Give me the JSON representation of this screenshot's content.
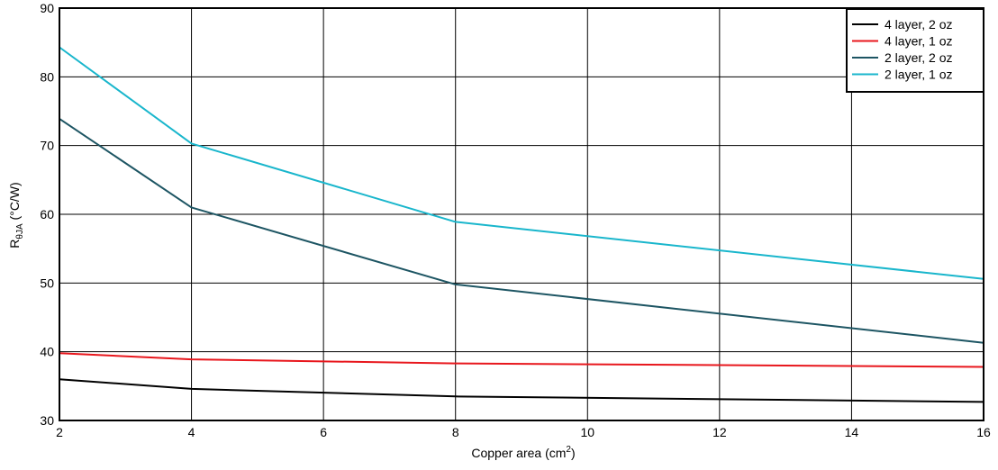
{
  "chart_data": {
    "type": "line",
    "title": "",
    "xlabel": "Copper area (cm",
    "xlabel_sup": "2",
    "xlabel_close": ")",
    "ylabel_main": "R",
    "ylabel_sub": "θJA",
    "ylabel_unit": " (°C/W)",
    "xlim": [
      2,
      16
    ],
    "ylim": [
      30,
      90
    ],
    "xticks": [
      2,
      4,
      6,
      8,
      10,
      12,
      14,
      16
    ],
    "yticks": [
      30,
      40,
      50,
      60,
      70,
      80,
      90
    ],
    "grid": true,
    "legend_position": "top-right",
    "series": [
      {
        "name": "4 layer, 2 oz",
        "color": "#000000",
        "x": [
          2,
          4,
          8,
          16
        ],
        "y": [
          36.0,
          34.6,
          33.5,
          32.7
        ]
      },
      {
        "name": "4 layer, 1 oz",
        "color": "#e8171d",
        "x": [
          2,
          4,
          8,
          16
        ],
        "y": [
          39.8,
          38.9,
          38.3,
          37.8
        ]
      },
      {
        "name": "2 layer, 2 oz",
        "color": "#1d5563",
        "x": [
          2,
          4,
          8,
          16
        ],
        "y": [
          73.9,
          61.0,
          49.8,
          41.3
        ]
      },
      {
        "name": "2 layer, 1 oz",
        "color": "#19b6cc",
        "x": [
          2,
          4,
          8,
          16
        ],
        "y": [
          84.3,
          70.3,
          58.9,
          50.6
        ]
      }
    ]
  }
}
